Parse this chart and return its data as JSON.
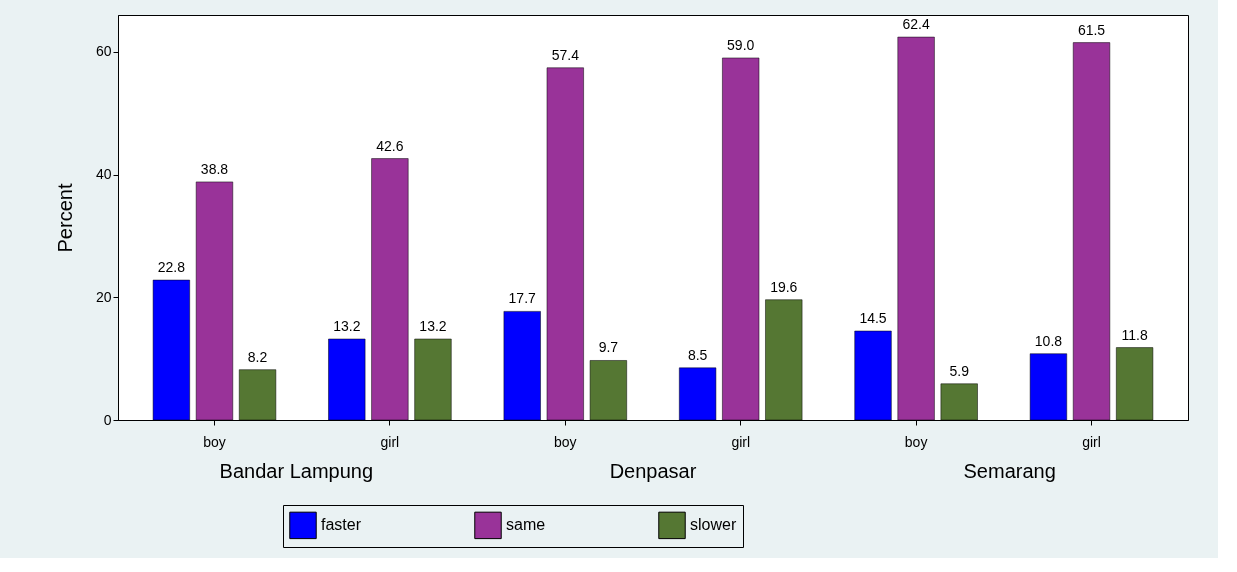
{
  "chart_data": {
    "type": "bar",
    "ylabel": "Percent",
    "categories": [
      "boy",
      "girl",
      "boy",
      "girl",
      "boy",
      "girl"
    ],
    "series": [
      {
        "name": "faster",
        "color": "#0000ff",
        "values": [
          22.8,
          13.2,
          17.7,
          8.5,
          14.5,
          10.8
        ],
        "value_labels": [
          "22.8",
          "13.2",
          "17.7",
          "8.5",
          "14.5",
          "10.8"
        ]
      },
      {
        "name": "same",
        "color": "#993399",
        "values": [
          38.8,
          42.6,
          57.4,
          59.0,
          62.4,
          61.5
        ],
        "value_labels": [
          "38.8",
          "42.6",
          "57.4",
          "59.0",
          "62.4",
          "61.5"
        ]
      },
      {
        "name": "slower",
        "color": "#557733",
        "values": [
          8.2,
          13.2,
          9.7,
          19.6,
          5.9,
          11.8
        ],
        "value_labels": [
          "8.2",
          "13.2",
          "9.7",
          "19.6",
          "5.9",
          "11.8"
        ]
      }
    ],
    "ylim": [
      0,
      66
    ],
    "yticks": [
      0,
      20,
      40,
      60
    ],
    "grid": false,
    "legend": "bottom",
    "annotations": [
      "Bandar Lampung",
      "Denpasar",
      "Semarang"
    ]
  }
}
